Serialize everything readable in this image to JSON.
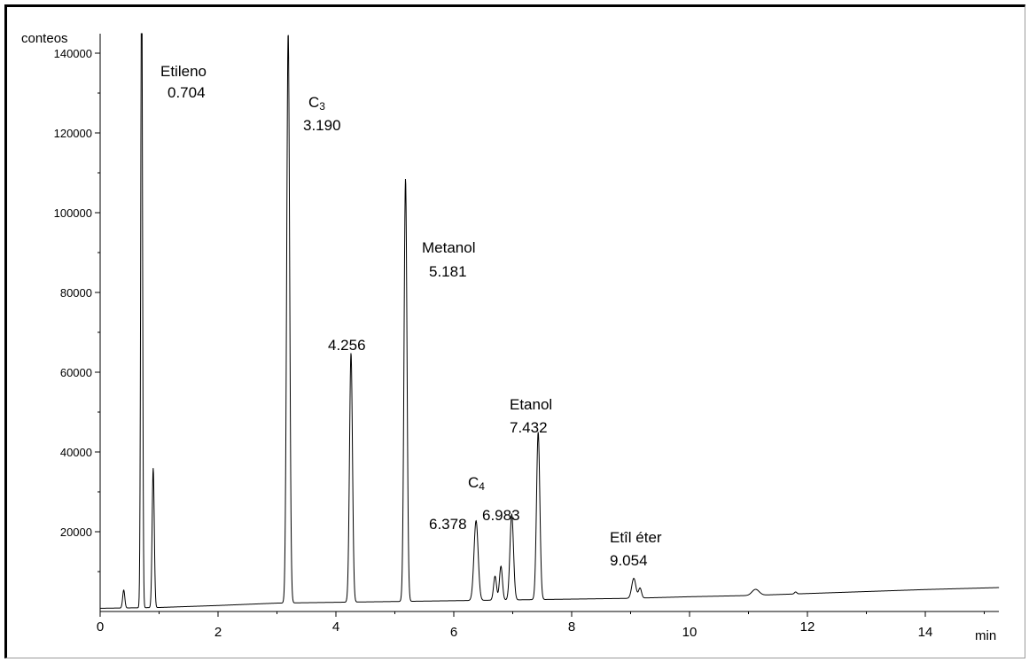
{
  "chart_data": {
    "type": "line",
    "ylabel": "conteos",
    "xlabel": "min",
    "x_ticks": [
      "0",
      "2",
      "4",
      "6",
      "8",
      "10",
      "12",
      "14"
    ],
    "y_ticks": [
      "20000",
      "40000",
      "60000",
      "80000",
      "100000",
      "120000",
      "140000"
    ],
    "xlim": [
      0,
      15.25
    ],
    "ylim": [
      0,
      145000
    ],
    "baseline": [
      [
        0,
        800
      ],
      [
        1,
        1000
      ],
      [
        2,
        1500
      ],
      [
        3,
        2100
      ],
      [
        4,
        2300
      ],
      [
        5,
        2500
      ],
      [
        6,
        2700
      ],
      [
        7,
        2900
      ],
      [
        8,
        3100
      ],
      [
        9,
        3300
      ],
      [
        10,
        3700
      ],
      [
        11,
        4000
      ],
      [
        12,
        4500
      ],
      [
        13,
        5000
      ],
      [
        14,
        5500
      ],
      [
        15.25,
        6000
      ]
    ],
    "peaks": [
      {
        "rt": 0.4,
        "height": 4500,
        "width": 0.018
      },
      {
        "rt": 0.704,
        "height": 165000,
        "width": 0.015
      },
      {
        "rt": 0.9,
        "height": 35000,
        "width": 0.018
      },
      {
        "rt": 3.19,
        "height": 143000,
        "width": 0.025
      },
      {
        "rt": 4.256,
        "height": 62500,
        "width": 0.025
      },
      {
        "rt": 5.181,
        "height": 106000,
        "width": 0.025
      },
      {
        "rt": 6.378,
        "height": 20000,
        "width": 0.035
      },
      {
        "rt": 6.7,
        "height": 6000,
        "width": 0.025
      },
      {
        "rt": 6.8,
        "height": 8500,
        "width": 0.025
      },
      {
        "rt": 6.983,
        "height": 21500,
        "width": 0.03
      },
      {
        "rt": 7.432,
        "height": 42000,
        "width": 0.028
      },
      {
        "rt": 9.054,
        "height": 5000,
        "width": 0.035
      },
      {
        "rt": 9.16,
        "height": 2500,
        "width": 0.025
      },
      {
        "rt": 11.12,
        "height": 1500,
        "width": 0.06
      },
      {
        "rt": 11.8,
        "height": 500,
        "width": 0.02
      }
    ],
    "annotations": [
      {
        "id": "etileno",
        "name": "Etileno",
        "rt": "0.704"
      },
      {
        "id": "c3",
        "name": "C",
        "sub": "3",
        "rt": "3.190"
      },
      {
        "id": "p4256",
        "name": "",
        "rt": "4.256"
      },
      {
        "id": "metanol",
        "name": "Metanol",
        "rt": "5.181"
      },
      {
        "id": "c4",
        "name": "C",
        "sub": "4",
        "rt": ""
      },
      {
        "id": "p6378",
        "name": "",
        "rt": "6.378"
      },
      {
        "id": "p6983",
        "name": "",
        "rt": "6.983"
      },
      {
        "id": "etanol",
        "name": "Etanol",
        "rt": "7.432"
      },
      {
        "id": "etileter",
        "name": "Etîl éter",
        "rt": "9.054"
      }
    ]
  }
}
